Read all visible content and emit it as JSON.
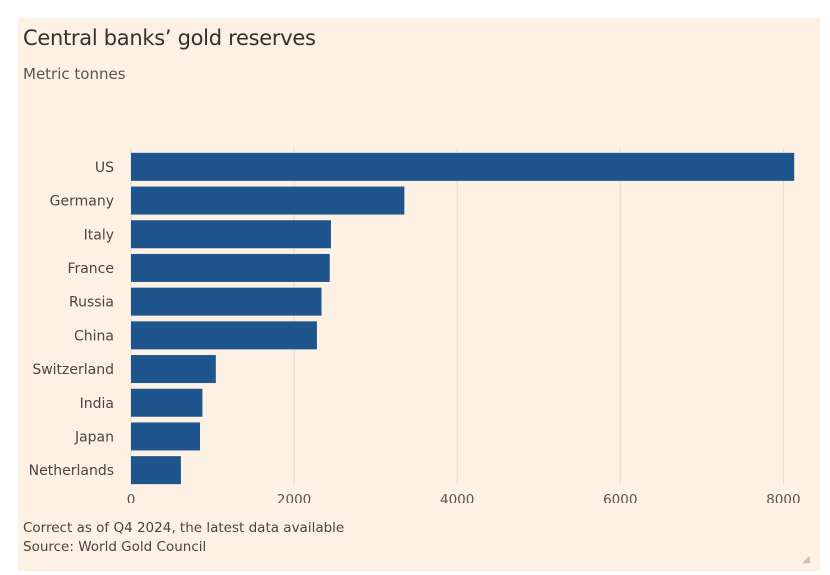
{
  "chart_data": {
    "type": "bar",
    "orientation": "horizontal",
    "title": "Central banks’ gold reserves",
    "subtitle": "Metric tonnes",
    "categories": [
      "US",
      "Germany",
      "Italy",
      "France",
      "Russia",
      "China",
      "Switzerland",
      "India",
      "Japan",
      "Netherlands"
    ],
    "values": [
      8133,
      3352,
      2452,
      2437,
      2336,
      2280,
      1040,
      876,
      846,
      612
    ],
    "xlim": [
      0,
      8400
    ],
    "xticks": [
      0,
      2000,
      4000,
      6000,
      8000
    ],
    "grid": true,
    "bar_color": "#1e558c",
    "footer": [
      "Correct as of Q4 2024, the latest data available",
      "Source: World Gold Council"
    ]
  }
}
